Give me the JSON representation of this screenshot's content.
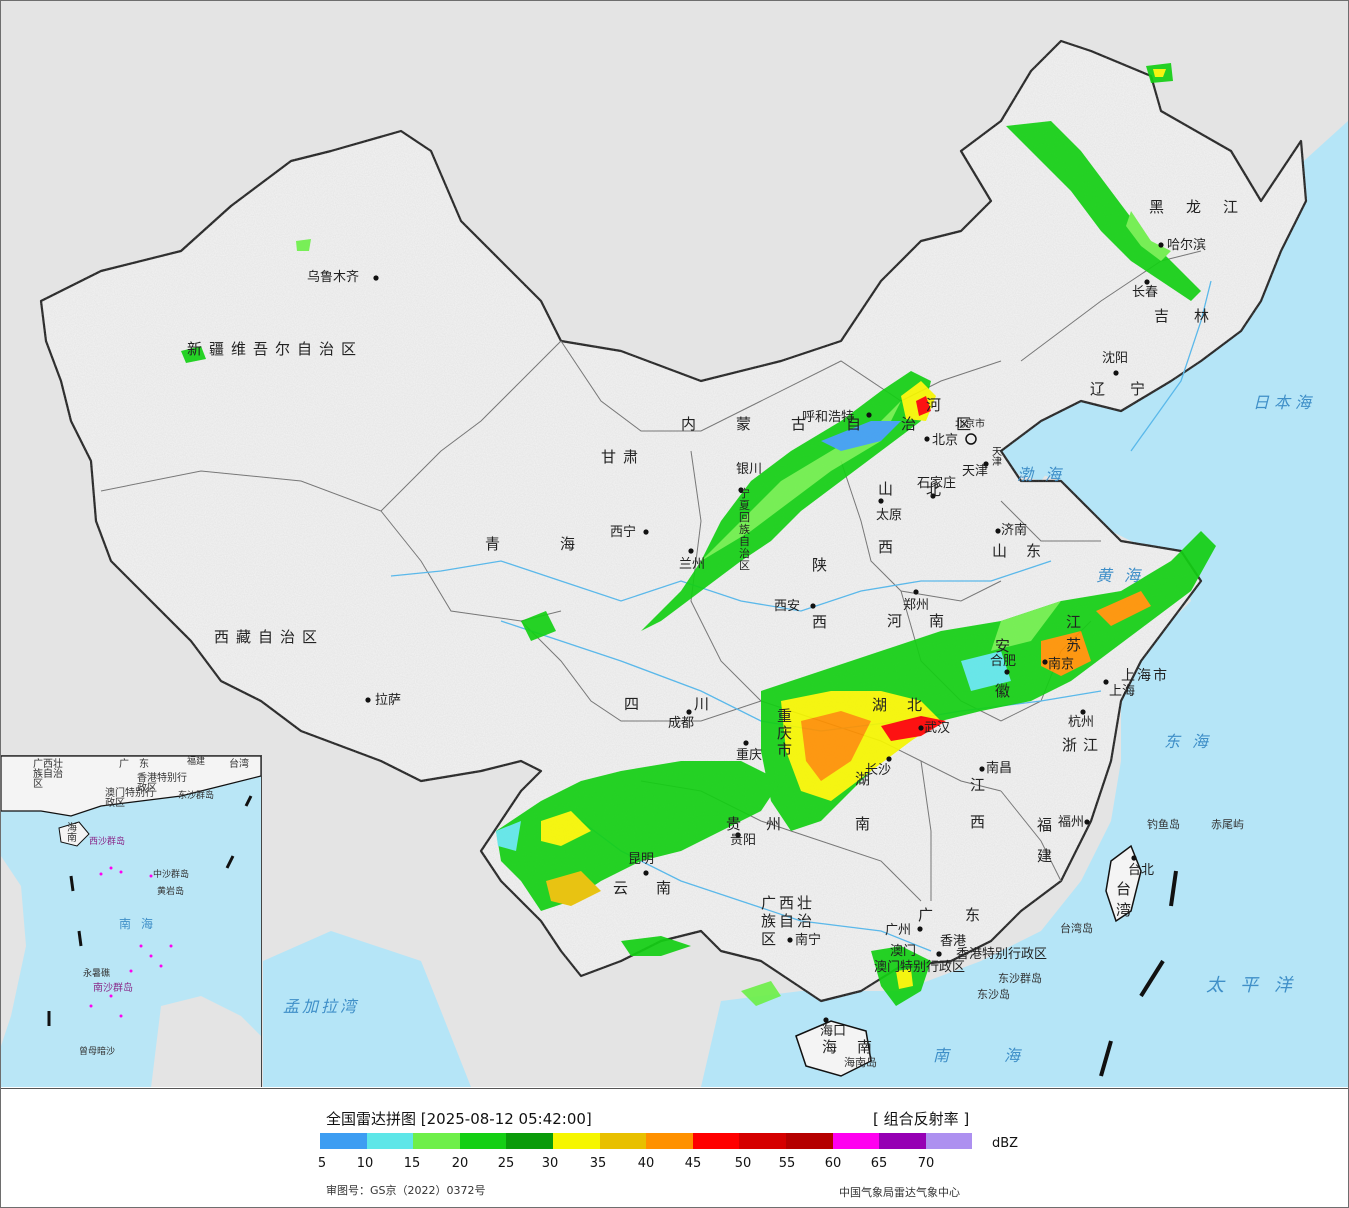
{
  "map": {
    "provinces": [
      {
        "id": "xinjiang",
        "name": "新疆维吾尔自治区"
      },
      {
        "id": "tibet",
        "name": "西藏自治区"
      },
      {
        "id": "qinghai",
        "name": "青海"
      },
      {
        "id": "gansu",
        "name": "甘肃"
      },
      {
        "id": "neimenggu",
        "name": "内蒙古自治区"
      },
      {
        "id": "heilongjiang",
        "name": "黑龙江"
      },
      {
        "id": "jilin",
        "name": "吉林"
      },
      {
        "id": "liaoning",
        "name": "辽宁"
      },
      {
        "id": "hebei",
        "name": "河北"
      },
      {
        "id": "shanxi",
        "name": "山西"
      },
      {
        "id": "shandong",
        "name": "山东"
      },
      {
        "id": "shaanxi",
        "name": "陕西"
      },
      {
        "id": "henan",
        "name": "河南"
      },
      {
        "id": "jiangsu",
        "name": "江苏"
      },
      {
        "id": "anhui",
        "name": "安徽"
      },
      {
        "id": "shanghai",
        "name": "上海市"
      },
      {
        "id": "zhejiang",
        "name": "浙江"
      },
      {
        "id": "hubei",
        "name": "湖北"
      },
      {
        "id": "sichuan",
        "name": "四川"
      },
      {
        "id": "chongqing",
        "name": "重庆市"
      },
      {
        "id": "hunan",
        "name": "湖南"
      },
      {
        "id": "jiangxi",
        "name": "江西"
      },
      {
        "id": "fujian",
        "name": "福建"
      },
      {
        "id": "guizhou",
        "name": "贵州"
      },
      {
        "id": "yunnan",
        "name": "云南"
      },
      {
        "id": "guangxi",
        "name": "广西壮族自治区"
      },
      {
        "id": "guangdong",
        "name": "广东"
      },
      {
        "id": "hainan",
        "name": "海南"
      },
      {
        "id": "taiwan",
        "name": "台湾"
      },
      {
        "id": "hongkong",
        "name": "香港特别行政区"
      },
      {
        "id": "macao",
        "name": "澳门特别行政区"
      },
      {
        "id": "ningxia",
        "name": "宁夏回族自治区"
      }
    ],
    "cities": [
      {
        "id": "urumqi",
        "name": "乌鲁木齐"
      },
      {
        "id": "lhasa",
        "name": "拉萨"
      },
      {
        "id": "xining",
        "name": "西宁"
      },
      {
        "id": "lanzhou",
        "name": "兰州"
      },
      {
        "id": "yinchuan",
        "name": "银川"
      },
      {
        "id": "hohhot",
        "name": "呼和浩特"
      },
      {
        "id": "beijing",
        "name": "北京"
      },
      {
        "id": "beijingshi",
        "name": "北京市"
      },
      {
        "id": "tianjin",
        "name": "天津"
      },
      {
        "id": "tianjinshi",
        "name": "天津"
      },
      {
        "id": "shijiazhuang",
        "name": "石家庄"
      },
      {
        "id": "taiyuan",
        "name": "太原"
      },
      {
        "id": "jinan",
        "name": "济南"
      },
      {
        "id": "xian",
        "name": "西安"
      },
      {
        "id": "zhengzhou",
        "name": "郑州"
      },
      {
        "id": "nanjing",
        "name": "南京"
      },
      {
        "id": "hefei",
        "name": "合肥"
      },
      {
        "id": "shanghai",
        "name": "上海"
      },
      {
        "id": "hangzhou",
        "name": "杭州"
      },
      {
        "id": "wuhan",
        "name": "武汉"
      },
      {
        "id": "chengdu",
        "name": "成都"
      },
      {
        "id": "chongqing",
        "name": "重庆"
      },
      {
        "id": "changsha",
        "name": "长沙"
      },
      {
        "id": "nanchang",
        "name": "南昌"
      },
      {
        "id": "fuzhou",
        "name": "福州"
      },
      {
        "id": "guiyang",
        "name": "贵阳"
      },
      {
        "id": "kunming",
        "name": "昆明"
      },
      {
        "id": "nanning",
        "name": "南宁"
      },
      {
        "id": "guangzhou",
        "name": "广州"
      },
      {
        "id": "hongkong",
        "name": "香港"
      },
      {
        "id": "macao",
        "name": "澳门"
      },
      {
        "id": "haikou",
        "name": "海口"
      },
      {
        "id": "taipei",
        "name": "台北"
      },
      {
        "id": "harbin",
        "name": "哈尔滨"
      },
      {
        "id": "changchun",
        "name": "长春"
      },
      {
        "id": "shenyang",
        "name": "沈阳"
      }
    ],
    "seas": [
      {
        "id": "bohai",
        "name": "渤海"
      },
      {
        "id": "yellow-sea",
        "name": "黄海"
      },
      {
        "id": "east-china-sea",
        "name": "东海"
      },
      {
        "id": "south-china-sea",
        "name": "南海"
      },
      {
        "id": "pacific",
        "name": "太平洋"
      },
      {
        "id": "sea-of-japan",
        "name": "日本海"
      },
      {
        "id": "bay-of-bengal",
        "name": "孟加拉湾"
      }
    ],
    "islands": [
      {
        "id": "diaoyu",
        "name": "钓鱼岛"
      },
      {
        "id": "chiwei",
        "name": "赤尾屿"
      },
      {
        "id": "taiwan-island",
        "name": "台湾岛"
      },
      {
        "id": "dongsha-islands",
        "name": "东沙群岛"
      },
      {
        "id": "dongsha-island",
        "name": "东沙岛"
      },
      {
        "id": "hainan-island",
        "name": "海南岛"
      }
    ],
    "inset_labels": [
      {
        "id": "in-guangxi",
        "name": "广西壮族自治区"
      },
      {
        "id": "in-guangdong",
        "name": "广东"
      },
      {
        "id": "in-fujian",
        "name": "福建"
      },
      {
        "id": "in-taiwan",
        "name": "台湾"
      },
      {
        "id": "in-hk",
        "name": "香港特别行政区"
      },
      {
        "id": "in-macao",
        "name": "澳门特别行政区"
      },
      {
        "id": "in-dongsha",
        "name": "东沙群岛"
      },
      {
        "id": "in-hainan",
        "name": "海南"
      },
      {
        "id": "in-xisha",
        "name": "西沙群岛"
      },
      {
        "id": "in-zhongsha",
        "name": "中沙群岛"
      },
      {
        "id": "in-huangyan",
        "name": "黄岩岛"
      },
      {
        "id": "in-nansha",
        "name": "南沙群岛"
      },
      {
        "id": "in-nanhai",
        "name": "南海"
      },
      {
        "id": "in-yongshu",
        "name": "永暑礁"
      },
      {
        "id": "in-zengmu",
        "name": "曾母暗沙"
      }
    ]
  },
  "legend": {
    "title": "全国雷达拼图 [2025-08-12 05:42:00]",
    "product": "[ 组合反射率 ]",
    "unit": "dBZ",
    "bins": [
      {
        "from": 5,
        "color": "#3d9df2"
      },
      {
        "from": 10,
        "color": "#5ee6e8"
      },
      {
        "from": 15,
        "color": "#6eef4a"
      },
      {
        "from": 20,
        "color": "#14cf14"
      },
      {
        "from": 25,
        "color": "#0a9b0a"
      },
      {
        "from": 30,
        "color": "#f6f600"
      },
      {
        "from": 35,
        "color": "#e8c000"
      },
      {
        "from": 40,
        "color": "#ff9100"
      },
      {
        "from": 45,
        "color": "#ff0000"
      },
      {
        "from": 50,
        "color": "#d50000"
      },
      {
        "from": 55,
        "color": "#b50000"
      },
      {
        "from": 60,
        "color": "#ff00f0"
      },
      {
        "from": 65,
        "color": "#9600b4"
      },
      {
        "from": 70,
        "color": "#ad90f0"
      }
    ],
    "tick_labels": [
      "5",
      "10",
      "15",
      "20",
      "25",
      "30",
      "35",
      "40",
      "45",
      "50",
      "55",
      "60",
      "65",
      "70"
    ],
    "review_number": "审图号：GS京（2022）0372号",
    "credit": "中国气象局雷达气象中心"
  }
}
